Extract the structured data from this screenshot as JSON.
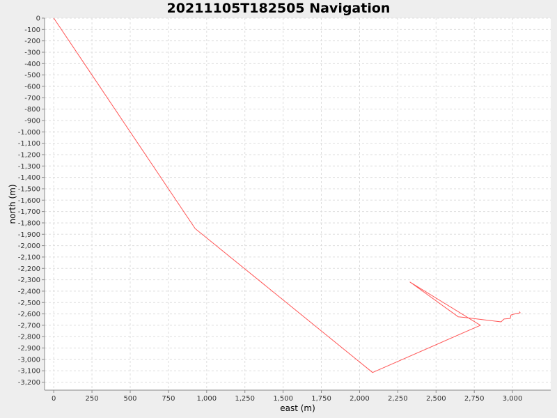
{
  "chart_data": {
    "type": "line",
    "title": "20211105T182505 Navigation",
    "xlabel": "east (m)",
    "ylabel": "north (m)",
    "xlim": [
      -60,
      3250
    ],
    "ylim": [
      -3270,
      0
    ],
    "xticks": [
      0,
      250,
      500,
      750,
      1000,
      1250,
      1500,
      1750,
      2000,
      2250,
      2500,
      2750,
      3000
    ],
    "xtick_labels": [
      "0",
      "250",
      "500",
      "750",
      "1,000",
      "1,250",
      "1,500",
      "1,750",
      "2,000",
      "2,250",
      "2,500",
      "2,750",
      "3,000"
    ],
    "yticks": [
      0,
      -100,
      -200,
      -300,
      -400,
      -500,
      -600,
      -700,
      -800,
      -900,
      -1000,
      -1100,
      -1200,
      -1300,
      -1400,
      -1500,
      -1600,
      -1700,
      -1800,
      -1900,
      -2000,
      -2100,
      -2200,
      -2300,
      -2400,
      -2500,
      -2600,
      -2700,
      -2800,
      -2900,
      -3000,
      -3100,
      -3200
    ],
    "ytick_labels": [
      "0",
      "-100",
      "-200",
      "-300",
      "-400",
      "-500",
      "-600",
      "-700",
      "-800",
      "-900",
      "-1,000",
      "-1,100",
      "-1,200",
      "-1,300",
      "-1,400",
      "-1,500",
      "-1,600",
      "-1,700",
      "-1,800",
      "-1,900",
      "-2,000",
      "-2,100",
      "-2,200",
      "-2,300",
      "-2,400",
      "-2,500",
      "-2,600",
      "-2,700",
      "-2,800",
      "-2,900",
      "-3,000",
      "-3,100",
      "-3,200"
    ],
    "grid": true,
    "legend": "none",
    "series": [
      {
        "color": "#ff5555",
        "x": [
          0,
          925,
          2085,
          2790,
          2330,
          2645,
          2680,
          2925,
          2945,
          2985,
          2990,
          3000,
          3050,
          3045
        ],
        "y": [
          0,
          -1850,
          -3115,
          -2700,
          -2320,
          -2625,
          -2630,
          -2670,
          -2645,
          -2640,
          -2610,
          -2605,
          -2590,
          -2580
        ]
      }
    ],
    "colors": {
      "background": "#eeeeee",
      "plot_background": "#ffffff",
      "grid": "#dddddd",
      "axis": "#888888",
      "series": "#ff5555"
    }
  }
}
